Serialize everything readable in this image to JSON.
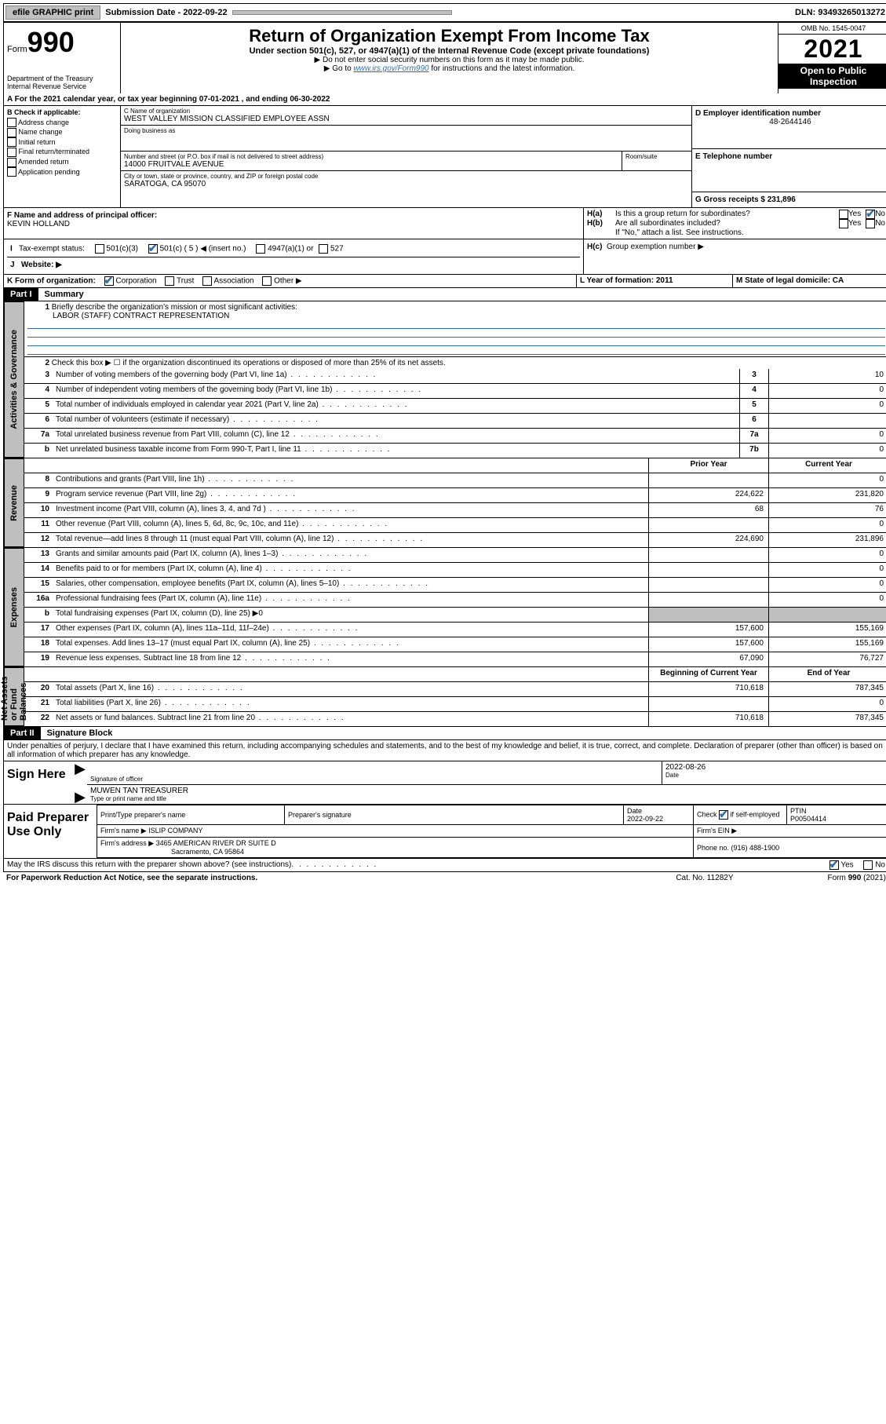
{
  "topbar": {
    "efile": "efile GRAPHIC print",
    "sub_label": "Submission Date - 2022-09-22",
    "dln": "DLN: 93493265013272"
  },
  "header": {
    "form_word": "Form",
    "form_num": "990",
    "dept": "Department of the Treasury Internal Revenue Service",
    "title": "Return of Organization Exempt From Income Tax",
    "subtitle": "Under section 501(c), 527, or 4947(a)(1) of the Internal Revenue Code (except private foundations)",
    "note1": "▶ Do not enter social security numbers on this form as it may be made public.",
    "note2_pre": "▶ Go to ",
    "note2_link": "www.irs.gov/Form990",
    "note2_post": " for instructions and the latest information.",
    "omb": "OMB No. 1545-0047",
    "year": "2021",
    "open": "Open to Public Inspection"
  },
  "lineA": "For the 2021 calendar year, or tax year beginning 07-01-2021    , and ending 06-30-2022",
  "sectionB": {
    "label": "B Check if applicable:",
    "opts": [
      "Address change",
      "Name change",
      "Initial return",
      "Final return/terminated",
      "Amended return",
      "Application pending"
    ]
  },
  "sectionC": {
    "name_label": "C Name of organization",
    "name": "WEST VALLEY MISSION CLASSIFIED EMPLOYEE ASSN",
    "dba_label": "Doing business as",
    "addr_label": "Number and street (or P.O. box if mail is not delivered to street address)",
    "room_label": "Room/suite",
    "addr": "14000 FRUITVALE AVENUE",
    "city_label": "City or town, state or province, country, and ZIP or foreign postal code",
    "city": "SARATOGA, CA  95070"
  },
  "sectionD": {
    "label": "D Employer identification number",
    "ein": "48-2644146",
    "phone_label": "E Telephone number",
    "gross_label": "G Gross receipts $ 231,896"
  },
  "sectionF": {
    "label": "F  Name and address of principal officer:",
    "name": "KEVIN HOLLAND"
  },
  "sectionH": {
    "ha": "Is this a group return for subordinates?",
    "hb": "Are all subordinates included?",
    "hb_note": "If \"No,\" attach a list. See instructions.",
    "hc": "Group exemption number ▶",
    "yes": "Yes",
    "no": "No"
  },
  "sectionI": {
    "label": "Tax-exempt status:",
    "o1": "501(c)(3)",
    "o2": "501(c) ( 5 ) ◀ (insert no.)",
    "o3": "4947(a)(1) or",
    "o4": "527"
  },
  "sectionJ": "Website: ▶",
  "sectionK": {
    "label": "K Form of organization:",
    "o1": "Corporation",
    "o2": "Trust",
    "o3": "Association",
    "o4": "Other ▶"
  },
  "sectionL": "L Year of formation: 2011",
  "sectionM": "M State of legal domicile: CA",
  "part1": {
    "header": "Part I",
    "title": "Summary",
    "tab_gov": "Activities & Governance",
    "tab_rev": "Revenue",
    "tab_exp": "Expenses",
    "tab_net": "Net Assets or Fund Balances",
    "q1": "Briefly describe the organization's mission or most significant activities:",
    "q1_ans": "LABOR (STAFF) CONTRACT REPRESENTATION",
    "q2": "Check this box ▶ ☐  if the organization discontinued its operations or disposed of more than 25% of its net assets.",
    "rows_gov": [
      {
        "n": "3",
        "t": "Number of voting members of the governing body (Part VI, line 1a)",
        "box": "3",
        "v": "10"
      },
      {
        "n": "4",
        "t": "Number of independent voting members of the governing body (Part VI, line 1b)",
        "box": "4",
        "v": "0"
      },
      {
        "n": "5",
        "t": "Total number of individuals employed in calendar year 2021 (Part V, line 2a)",
        "box": "5",
        "v": "0"
      },
      {
        "n": "6",
        "t": "Total number of volunteers (estimate if necessary)",
        "box": "6",
        "v": ""
      },
      {
        "n": "7a",
        "t": "Total unrelated business revenue from Part VIII, column (C), line 12",
        "box": "7a",
        "v": "0"
      },
      {
        "n": "b",
        "t": "Net unrelated business taxable income from Form 990-T, Part I, line 11",
        "box": "7b",
        "v": "0"
      }
    ],
    "col_prior": "Prior Year",
    "col_curr": "Current Year",
    "col_beg": "Beginning of Current Year",
    "col_end": "End of Year",
    "rows_rev": [
      {
        "n": "8",
        "t": "Contributions and grants (Part VIII, line 1h)",
        "p": "",
        "c": "0"
      },
      {
        "n": "9",
        "t": "Program service revenue (Part VIII, line 2g)",
        "p": "224,622",
        "c": "231,820"
      },
      {
        "n": "10",
        "t": "Investment income (Part VIII, column (A), lines 3, 4, and 7d )",
        "p": "68",
        "c": "76"
      },
      {
        "n": "11",
        "t": "Other revenue (Part VIII, column (A), lines 5, 6d, 8c, 9c, 10c, and 11e)",
        "p": "",
        "c": "0"
      },
      {
        "n": "12",
        "t": "Total revenue—add lines 8 through 11 (must equal Part VIII, column (A), line 12)",
        "p": "224,690",
        "c": "231,896"
      }
    ],
    "rows_exp": [
      {
        "n": "13",
        "t": "Grants and similar amounts paid (Part IX, column (A), lines 1–3)",
        "p": "",
        "c": "0"
      },
      {
        "n": "14",
        "t": "Benefits paid to or for members (Part IX, column (A), line 4)",
        "p": "",
        "c": "0"
      },
      {
        "n": "15",
        "t": "Salaries, other compensation, employee benefits (Part IX, column (A), lines 5–10)",
        "p": "",
        "c": "0"
      },
      {
        "n": "16a",
        "t": "Professional fundraising fees (Part IX, column (A), line 11e)",
        "p": "",
        "c": "0"
      },
      {
        "n": "b",
        "t": "Total fundraising expenses (Part IX, column (D), line 25) ▶0",
        "grey": true
      },
      {
        "n": "17",
        "t": "Other expenses (Part IX, column (A), lines 11a–11d, 11f–24e)",
        "p": "157,600",
        "c": "155,169"
      },
      {
        "n": "18",
        "t": "Total expenses. Add lines 13–17 (must equal Part IX, column (A), line 25)",
        "p": "157,600",
        "c": "155,169"
      },
      {
        "n": "19",
        "t": "Revenue less expenses. Subtract line 18 from line 12",
        "p": "67,090",
        "c": "76,727"
      }
    ],
    "rows_net": [
      {
        "n": "20",
        "t": "Total assets (Part X, line 16)",
        "p": "710,618",
        "c": "787,345"
      },
      {
        "n": "21",
        "t": "Total liabilities (Part X, line 26)",
        "p": "",
        "c": "0"
      },
      {
        "n": "22",
        "t": "Net assets or fund balances. Subtract line 21 from line 20",
        "p": "710,618",
        "c": "787,345"
      }
    ]
  },
  "part2": {
    "header": "Part II",
    "title": "Signature Block",
    "penalty": "Under penalties of perjury, I declare that I have examined this return, including accompanying schedules and statements, and to the best of my knowledge and belief, it is true, correct, and complete. Declaration of preparer (other than officer) is based on all information of which preparer has any knowledge.",
    "sign_here": "Sign Here",
    "sig_officer": "Signature of officer",
    "sig_date": "2022-08-26",
    "date_label": "Date",
    "officer_name": "MUWEN TAN TREASURER",
    "officer_sub": "Type or print name and title",
    "paid": "Paid Preparer Use Only",
    "prep_name_label": "Print/Type preparer's name",
    "prep_sig_label": "Preparer's signature",
    "prep_date_label": "Date",
    "prep_date": "2022-09-22",
    "check_self": "Check ☑ if self-employed",
    "ptin_label": "PTIN",
    "ptin": "P00504414",
    "firm_name_label": "Firm's name    ▶",
    "firm_name": "ISLIP COMPANY",
    "firm_ein_label": "Firm's EIN ▶",
    "firm_addr_label": "Firm's address ▶",
    "firm_addr": "3465 AMERICAN RIVER DR SUITE D",
    "firm_addr2": "Sacramento, CA  95864",
    "firm_phone_label": "Phone no. (916) 488-1900",
    "irs_q": "May the IRS discuss this return with the preparer shown above? (see instructions)",
    "yes": "Yes",
    "no": "No"
  },
  "footer": {
    "left": "For Paperwork Reduction Act Notice, see the separate instructions.",
    "mid": "Cat. No. 11282Y",
    "right": "Form 990 (2021)"
  }
}
